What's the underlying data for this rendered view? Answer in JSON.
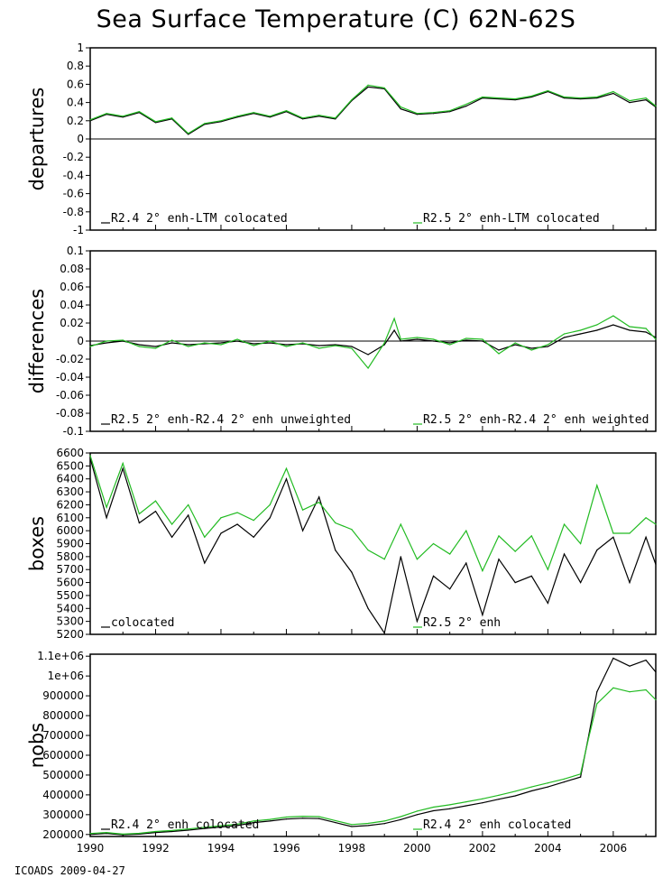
{
  "title": "Sea Surface Temperature (C) 62N-62S",
  "footer": "ICOADS 2009-04-27",
  "colors": {
    "black_series": "#000000",
    "green_series": "#22bb22",
    "axes": "#000000"
  },
  "x_axis": {
    "range": [
      1990,
      2007.3
    ],
    "tick_labels": [
      "1990",
      "1992",
      "1994",
      "1996",
      "1998",
      "2000",
      "2002",
      "2004",
      "2006"
    ]
  },
  "chart_data": [
    {
      "type": "line",
      "ylabel": "departures",
      "ylim": [
        -1,
        1
      ],
      "ytick_labels": [
        "-1",
        "-0.8",
        "-0.6",
        "-0.4",
        "-0.2",
        "0",
        "0.2",
        "0.4",
        "0.6",
        "0.8",
        "1"
      ],
      "zero_line": true,
      "x": [
        1990,
        1990.5,
        1991,
        1991.5,
        1992,
        1992.5,
        1993,
        1993.5,
        1994,
        1994.5,
        1995,
        1995.5,
        1996,
        1996.5,
        1997,
        1997.5,
        1998,
        1998.5,
        1999,
        1999.5,
        2000,
        2000.5,
        2001,
        2001.5,
        2002,
        2002.5,
        2003,
        2003.5,
        2004,
        2004.5,
        2005,
        2005.5,
        2006,
        2006.5,
        2007,
        2007.3
      ],
      "series": [
        {
          "name": "R2.4 2° enh-LTM colocated",
          "color": "#000000",
          "values": [
            0.2,
            0.27,
            0.24,
            0.29,
            0.18,
            0.22,
            0.05,
            0.16,
            0.19,
            0.24,
            0.28,
            0.24,
            0.3,
            0.22,
            0.25,
            0.22,
            0.42,
            0.57,
            0.55,
            0.33,
            0.27,
            0.28,
            0.3,
            0.36,
            0.45,
            0.44,
            0.43,
            0.46,
            0.52,
            0.45,
            0.44,
            0.45,
            0.5,
            0.4,
            0.43,
            0.35
          ]
        },
        {
          "name": "R2.5 2° enh-LTM colocated",
          "color": "#22bb22",
          "values": [
            0.21,
            0.28,
            0.25,
            0.3,
            0.19,
            0.23,
            0.06,
            0.17,
            0.2,
            0.25,
            0.29,
            0.25,
            0.31,
            0.23,
            0.26,
            0.23,
            0.43,
            0.59,
            0.56,
            0.35,
            0.28,
            0.29,
            0.31,
            0.38,
            0.46,
            0.45,
            0.44,
            0.47,
            0.53,
            0.46,
            0.45,
            0.46,
            0.52,
            0.42,
            0.45,
            0.36
          ]
        }
      ]
    },
    {
      "type": "line",
      "ylabel": "differences",
      "ylim": [
        -0.1,
        0.1
      ],
      "ytick_labels": [
        "-0.1",
        "-0.08",
        "-0.06",
        "-0.04",
        "-0.02",
        "0",
        "0.02",
        "0.04",
        "0.06",
        "0.08",
        "0.1"
      ],
      "zero_line": true,
      "x": [
        1990,
        1990.5,
        1991,
        1991.5,
        1992,
        1992.5,
        1993,
        1993.5,
        1994,
        1994.5,
        1995,
        1995.5,
        1996,
        1996.5,
        1997,
        1997.5,
        1998,
        1998.5,
        1999,
        1999.3,
        1999.5,
        2000,
        2000.5,
        2001,
        2001.5,
        2002,
        2002.5,
        2003,
        2003.5,
        2004,
        2004.5,
        2005,
        2005.5,
        2006,
        2006.5,
        2007,
        2007.3
      ],
      "series": [
        {
          "name": "R2.5 2° enh-R2.4 2° enh unweighted",
          "color": "#000000",
          "values": [
            -0.005,
            -0.002,
            0.0,
            -0.004,
            -0.006,
            -0.002,
            -0.004,
            -0.003,
            -0.002,
            0.0,
            -0.003,
            -0.002,
            -0.004,
            -0.003,
            -0.005,
            -0.004,
            -0.006,
            -0.015,
            -0.004,
            0.012,
            0.0,
            0.002,
            0.0,
            -0.002,
            0.001,
            0.0,
            -0.01,
            -0.004,
            -0.008,
            -0.006,
            0.004,
            0.008,
            0.012,
            0.018,
            0.012,
            0.01,
            0.004
          ]
        },
        {
          "name": "R2.5 2° enh-R2.4 2° enh weighted",
          "color": "#22bb22",
          "values": [
            -0.006,
            0.0,
            0.001,
            -0.006,
            -0.008,
            0.001,
            -0.006,
            -0.002,
            -0.004,
            0.002,
            -0.005,
            0.0,
            -0.006,
            -0.002,
            -0.008,
            -0.005,
            -0.008,
            -0.03,
            -0.002,
            0.025,
            0.002,
            0.004,
            0.002,
            -0.004,
            0.003,
            0.002,
            -0.014,
            -0.002,
            -0.01,
            -0.004,
            0.008,
            0.012,
            0.018,
            0.028,
            0.016,
            0.014,
            0.002
          ]
        }
      ]
    },
    {
      "type": "line",
      "ylabel": "boxes",
      "ylim": [
        5200,
        6600
      ],
      "ytick_labels": [
        "5200",
        "5300",
        "5400",
        "5500",
        "5600",
        "5700",
        "5800",
        "5900",
        "6000",
        "6100",
        "6200",
        "6300",
        "6400",
        "6500",
        "6600"
      ],
      "zero_line": false,
      "x": [
        1990,
        1990.5,
        1991,
        1991.5,
        1992,
        1992.5,
        1993,
        1993.5,
        1994,
        1994.5,
        1995,
        1995.5,
        1996,
        1996.5,
        1997,
        1997.5,
        1998,
        1998.5,
        1999,
        1999.5,
        2000,
        2000.5,
        2001,
        2001.5,
        2002,
        2002.5,
        2003,
        2003.5,
        2004,
        2004.5,
        2005,
        2005.5,
        2006,
        2006.5,
        2007,
        2007.3
      ],
      "series": [
        {
          "name": "colocated",
          "color": "#000000",
          "values": [
            6560,
            6100,
            6480,
            6060,
            6150,
            5950,
            6120,
            5750,
            5980,
            6050,
            5950,
            6100,
            6400,
            6000,
            6260,
            5850,
            5680,
            5400,
            5210,
            5800,
            5300,
            5650,
            5550,
            5750,
            5350,
            5780,
            5600,
            5650,
            5440,
            5820,
            5600,
            5850,
            5950,
            5600,
            5950,
            5740
          ]
        },
        {
          "name": "R2.5 2° enh",
          "color": "#22bb22",
          "values": [
            6580,
            6180,
            6520,
            6130,
            6230,
            6050,
            6200,
            5950,
            6100,
            6140,
            6080,
            6200,
            6480,
            6160,
            6220,
            6060,
            6010,
            5850,
            5780,
            6050,
            5780,
            5900,
            5820,
            6000,
            5690,
            5960,
            5840,
            5960,
            5700,
            6050,
            5900,
            6350,
            5980,
            5980,
            6100,
            6050
          ]
        }
      ]
    },
    {
      "type": "line",
      "ylabel": "nobs",
      "ylim": [
        190000,
        1110000
      ],
      "ytick_labels": [
        "200000",
        "300000",
        "400000",
        "500000",
        "600000",
        "700000",
        "800000",
        "900000",
        "1e+06",
        "1.1e+06"
      ],
      "zero_line": false,
      "x": [
        1990,
        1990.5,
        1991,
        1991.5,
        1992,
        1992.5,
        1993,
        1993.5,
        1994,
        1994.5,
        1995,
        1995.5,
        1996,
        1996.5,
        1997,
        1997.5,
        1998,
        1998.5,
        1999,
        1999.5,
        2000,
        2000.5,
        2001,
        2001.5,
        2002,
        2002.5,
        2003,
        2003.5,
        2004,
        2004.5,
        2005,
        2005.25,
        2005.5,
        2006,
        2006.5,
        2007,
        2007.3
      ],
      "series": [
        {
          "name": "R2.4 2° enh colocated",
          "color": "#000000",
          "values": [
            200000,
            205000,
            198000,
            202000,
            210000,
            215000,
            222000,
            230000,
            238000,
            245000,
            260000,
            268000,
            278000,
            282000,
            280000,
            260000,
            240000,
            245000,
            255000,
            275000,
            300000,
            320000,
            330000,
            345000,
            360000,
            378000,
            395000,
            420000,
            440000,
            465000,
            490000,
            700000,
            920000,
            1090000,
            1050000,
            1080000,
            1020000
          ]
        },
        {
          "name": "R2.4 2° enh colocated",
          "color": "#22bb22",
          "values": [
            205000,
            210000,
            202000,
            206000,
            215000,
            220000,
            228000,
            236000,
            244000,
            252000,
            268000,
            276000,
            288000,
            292000,
            290000,
            270000,
            250000,
            256000,
            268000,
            290000,
            318000,
            338000,
            350000,
            365000,
            380000,
            398000,
            418000,
            440000,
            460000,
            480000,
            505000,
            690000,
            860000,
            940000,
            920000,
            930000,
            880000
          ]
        }
      ]
    }
  ]
}
